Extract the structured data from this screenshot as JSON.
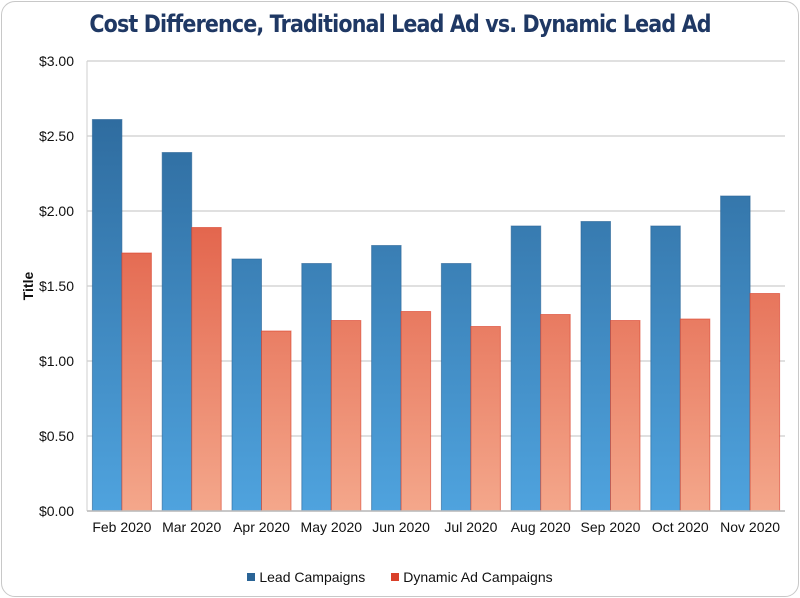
{
  "chart_data": {
    "type": "bar",
    "title": "Cost Difference, Traditional Lead Ad vs. Dynamic Lead Ad",
    "xlabel": "",
    "ylabel": "Title",
    "ylim": [
      0,
      3
    ],
    "yticks": [
      0,
      0.5,
      1,
      1.5,
      2,
      2.5,
      3
    ],
    "ytick_labels": [
      "$0.00",
      "$0.50",
      "$1.00",
      "$1.50",
      "$2.00",
      "$2.50",
      "$3.00"
    ],
    "grid": true,
    "legend_position": "bottom",
    "categories": [
      "Feb 2020",
      "Mar 2020",
      "Apr 2020",
      "May 2020",
      "Jun 2020",
      "Jul 2020",
      "Aug 2020",
      "Sep 2020",
      "Oct 2020",
      "Nov 2020"
    ],
    "series": [
      {
        "name": "Lead Campaigns",
        "color_top": "#2a6496",
        "color_bottom": "#4fa3de",
        "values": [
          2.61,
          2.39,
          1.68,
          1.65,
          1.77,
          1.65,
          1.9,
          1.93,
          1.9,
          2.1
        ]
      },
      {
        "name": "Dynamic Ad Campaigns",
        "color_top": "#d9402a",
        "color_bottom": "#f4a78b",
        "values": [
          1.72,
          1.89,
          1.2,
          1.27,
          1.33,
          1.23,
          1.31,
          1.27,
          1.28,
          1.45
        ]
      }
    ]
  }
}
